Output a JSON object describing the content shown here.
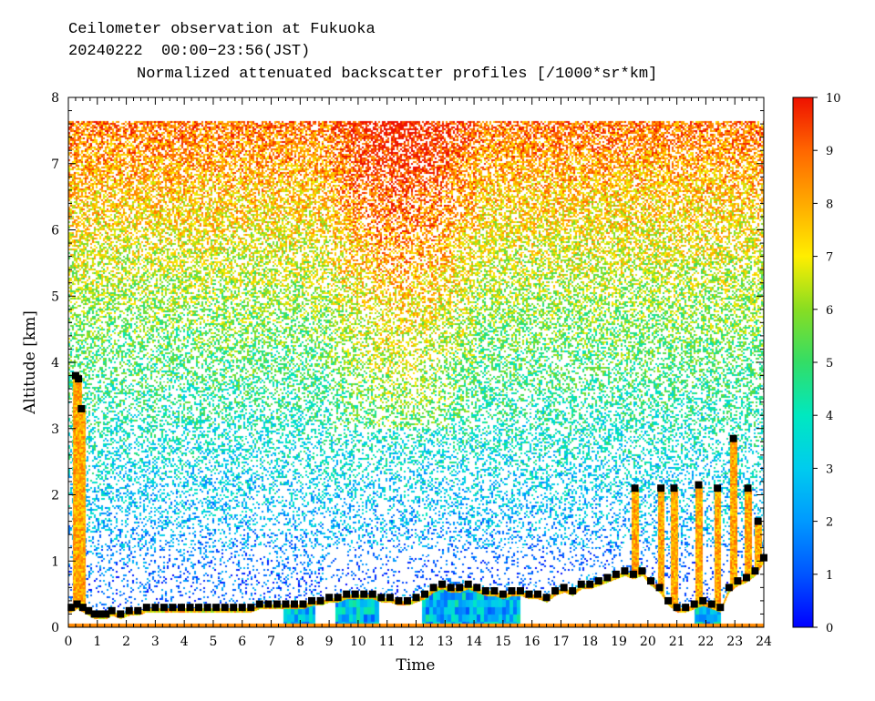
{
  "header": {
    "line1": "Ceilometer observation at Fukuoka",
    "line2": "20240222  00:00−23:56(JST)",
    "title": "Normalized attenuated backscatter profiles [/1000*sr*km]"
  },
  "chart_data": {
    "type": "heatmap",
    "title": "Normalized attenuated backscatter profiles [/1000*sr*km]",
    "xlabel": "Time",
    "ylabel": "Altitude [km]",
    "xlim": [
      0,
      24
    ],
    "ylim": [
      0,
      8
    ],
    "xticks": [
      0,
      1,
      2,
      3,
      4,
      5,
      6,
      7,
      8,
      9,
      10,
      11,
      12,
      13,
      14,
      15,
      16,
      17,
      18,
      19,
      20,
      21,
      22,
      23,
      24
    ],
    "yticks": [
      0,
      1,
      2,
      3,
      4,
      5,
      6,
      7,
      8
    ],
    "colorbar": {
      "min": 0,
      "max": 10,
      "ticks": [
        0,
        1,
        2,
        3,
        4,
        5,
        6,
        7,
        8,
        9,
        10
      ],
      "colors": [
        "#0000ff",
        "#0055ff",
        "#0099ff",
        "#00ccee",
        "#00e8c0",
        "#33dd66",
        "#88dd22",
        "#ffee00",
        "#ffaa00",
        "#ff6600",
        "#ee1100"
      ]
    },
    "data_top_altitude": 7.65,
    "mixing_layer_height": {
      "marker": "black-square",
      "points": [
        [
          0.1,
          0.3
        ],
        [
          0.3,
          0.35
        ],
        [
          0.5,
          0.3
        ],
        [
          0.7,
          0.25
        ],
        [
          0.9,
          0.2
        ],
        [
          1.1,
          0.2
        ],
        [
          1.3,
          0.2
        ],
        [
          1.5,
          0.25
        ],
        [
          1.8,
          0.2
        ],
        [
          2.1,
          0.25
        ],
        [
          2.4,
          0.25
        ],
        [
          2.7,
          0.3
        ],
        [
          3.0,
          0.3
        ],
        [
          3.3,
          0.3
        ],
        [
          3.6,
          0.3
        ],
        [
          3.9,
          0.3
        ],
        [
          4.2,
          0.3
        ],
        [
          4.5,
          0.3
        ],
        [
          4.8,
          0.3
        ],
        [
          5.1,
          0.3
        ],
        [
          5.4,
          0.3
        ],
        [
          5.7,
          0.3
        ],
        [
          6.0,
          0.3
        ],
        [
          6.3,
          0.3
        ],
        [
          6.6,
          0.35
        ],
        [
          6.9,
          0.35
        ],
        [
          7.2,
          0.35
        ],
        [
          7.5,
          0.35
        ],
        [
          7.8,
          0.35
        ],
        [
          8.1,
          0.35
        ],
        [
          8.4,
          0.4
        ],
        [
          8.7,
          0.4
        ],
        [
          9.0,
          0.45
        ],
        [
          9.3,
          0.45
        ],
        [
          9.6,
          0.5
        ],
        [
          9.9,
          0.5
        ],
        [
          10.2,
          0.5
        ],
        [
          10.5,
          0.5
        ],
        [
          10.8,
          0.45
        ],
        [
          11.1,
          0.45
        ],
        [
          11.4,
          0.4
        ],
        [
          11.7,
          0.4
        ],
        [
          12.0,
          0.45
        ],
        [
          12.3,
          0.5
        ],
        [
          12.6,
          0.6
        ],
        [
          12.9,
          0.65
        ],
        [
          13.2,
          0.6
        ],
        [
          13.5,
          0.6
        ],
        [
          13.8,
          0.65
        ],
        [
          14.1,
          0.6
        ],
        [
          14.4,
          0.55
        ],
        [
          14.7,
          0.55
        ],
        [
          15.0,
          0.5
        ],
        [
          15.3,
          0.55
        ],
        [
          15.6,
          0.55
        ],
        [
          15.9,
          0.5
        ],
        [
          16.2,
          0.5
        ],
        [
          16.5,
          0.45
        ],
        [
          16.8,
          0.55
        ],
        [
          17.1,
          0.6
        ],
        [
          17.4,
          0.55
        ],
        [
          17.7,
          0.65
        ],
        [
          18.0,
          0.65
        ],
        [
          18.3,
          0.7
        ],
        [
          18.6,
          0.75
        ],
        [
          18.9,
          0.8
        ],
        [
          19.2,
          0.85
        ],
        [
          19.5,
          0.8
        ],
        [
          19.8,
          0.85
        ],
        [
          20.1,
          0.7
        ],
        [
          20.4,
          0.6
        ],
        [
          20.7,
          0.4
        ],
        [
          21.0,
          0.3
        ],
        [
          21.3,
          0.3
        ],
        [
          21.6,
          0.35
        ],
        [
          21.9,
          0.4
        ],
        [
          22.2,
          0.35
        ],
        [
          22.5,
          0.3
        ],
        [
          22.8,
          0.6
        ],
        [
          23.1,
          0.7
        ],
        [
          23.4,
          0.75
        ],
        [
          23.7,
          0.85
        ],
        [
          24.0,
          1.05
        ]
      ]
    },
    "cloud_base": {
      "marker": "black-square",
      "points": [
        [
          0.25,
          3.8
        ],
        [
          0.35,
          3.75
        ],
        [
          0.45,
          3.3
        ],
        [
          19.55,
          2.1
        ],
        [
          20.45,
          2.1
        ],
        [
          20.9,
          2.1
        ],
        [
          21.75,
          2.15
        ],
        [
          22.4,
          2.1
        ],
        [
          22.95,
          2.85
        ],
        [
          23.45,
          2.1
        ],
        [
          23.8,
          1.6
        ]
      ]
    }
  }
}
